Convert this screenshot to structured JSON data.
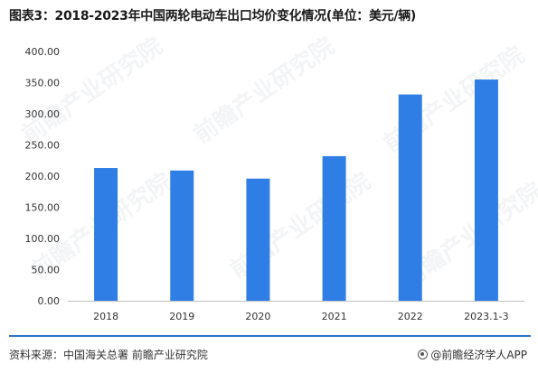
{
  "title": "图表3：2018-2023年中国两轮电动车出口均价变化情况(单位：美元/辆)",
  "source": "资料来源：中国海关总署 前瞻产业研究院",
  "brand": "@前瞻经济学人APP",
  "watermark": "前瞻产业研究院",
  "colors": {
    "bar": "#2f7ee6",
    "footer_line": "#2e74c8"
  },
  "chart_data": {
    "type": "bar",
    "categories": [
      "2018",
      "2019",
      "2020",
      "2021",
      "2022",
      "2023.1-3"
    ],
    "values": [
      213,
      209,
      196,
      232,
      331,
      355
    ],
    "ylim": [
      0,
      400
    ],
    "yticks": [
      "0.00",
      "50.00",
      "100.00",
      "150.00",
      "200.00",
      "250.00",
      "300.00",
      "350.00",
      "400.00"
    ],
    "grid": false,
    "xlabel": "",
    "ylabel": ""
  }
}
